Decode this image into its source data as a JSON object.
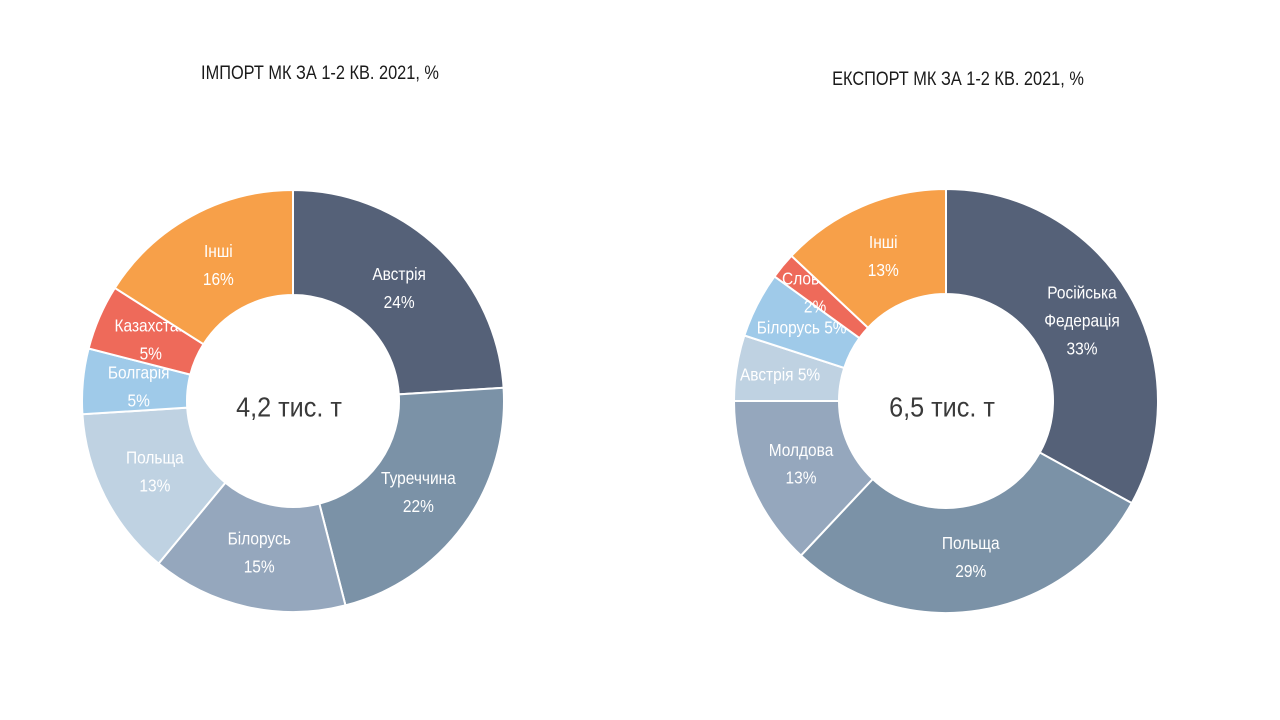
{
  "chart_data": [
    {
      "type": "pie",
      "title": "ІМПОРТ МК ЗА 1-2 КВ. 2021, %",
      "center_label": "4,2 тис. т",
      "slices": [
        {
          "label": "Австрія",
          "value": 24,
          "value_label": "24%",
          "color": "#556178"
        },
        {
          "label": "Туреччина",
          "value": 22,
          "value_label": "22%",
          "color": "#7b92a7"
        },
        {
          "label": "Білорусь",
          "value": 15,
          "value_label": "15%",
          "color": "#95a7bd"
        },
        {
          "label": "Польща",
          "value": 13,
          "value_label": "13%",
          "color": "#bfd2e2"
        },
        {
          "label": "Болгарія",
          "value": 5,
          "value_label": "5%",
          "color": "#9fcae9"
        },
        {
          "label": "Казахстан",
          "value": 5,
          "value_label": "5%",
          "color": "#ee6a5a"
        },
        {
          "label": "Інші",
          "value": 16,
          "value_label": "16%",
          "color": "#f7a049"
        }
      ]
    },
    {
      "type": "pie",
      "title": "ЕКСПОРТ МК ЗА 1-2 КВ. 2021, %",
      "center_label": "6,5 тис. т",
      "slices": [
        {
          "label": "Російська Федерація",
          "value": 33,
          "value_label": "33%",
          "color": "#556178"
        },
        {
          "label": "Польща",
          "value": 29,
          "value_label": "29%",
          "color": "#7b92a7"
        },
        {
          "label": "Молдова",
          "value": 13,
          "value_label": "13%",
          "color": "#95a7bd"
        },
        {
          "label": "Австрія",
          "value": 5,
          "value_label": "5%",
          "color": "#bfd2e2"
        },
        {
          "label": "Білорусь",
          "value": 5,
          "value_label": "5%",
          "color": "#9fcae9"
        },
        {
          "label": "Словенія",
          "value": 2,
          "value_label": "2%",
          "color": "#ee6a5a"
        },
        {
          "label": "Інші",
          "value": 13,
          "value_label": "13%",
          "color": "#f7a049"
        }
      ]
    }
  ]
}
